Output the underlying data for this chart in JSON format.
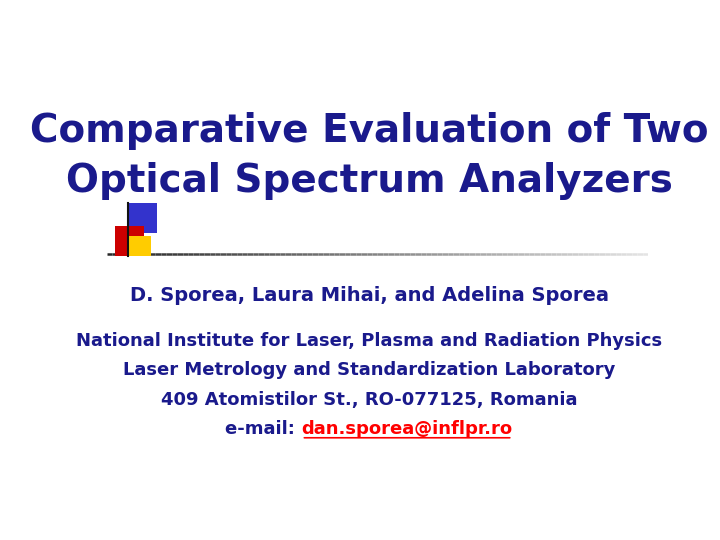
{
  "title_line1": "Comparative Evaluation of Two",
  "title_line2": "Optical Spectrum Analyzers",
  "title_color": "#1a1a8c",
  "author": "D. Sporea, Laura Mihai, and Adelina Sporea",
  "author_color": "#1a1a8c",
  "institute_line1": "National Institute for Laser, Plasma and Radiation Physics",
  "institute_line2": "Laser Metrology and Standardization Laboratory",
  "institute_line3": "409 Atomistilor St., RO-077125, Romania",
  "institute_color": "#1a1a8c",
  "email_label": "e-mail: ",
  "email_address": "dan.sporea@inflpr.ro",
  "email_label_color": "#1a1a8c",
  "email_link_color": "#ff0000",
  "bg_color": "#ffffff",
  "logo_blue": "#3333cc",
  "logo_red": "#cc0000",
  "logo_yellow": "#ffcc00"
}
